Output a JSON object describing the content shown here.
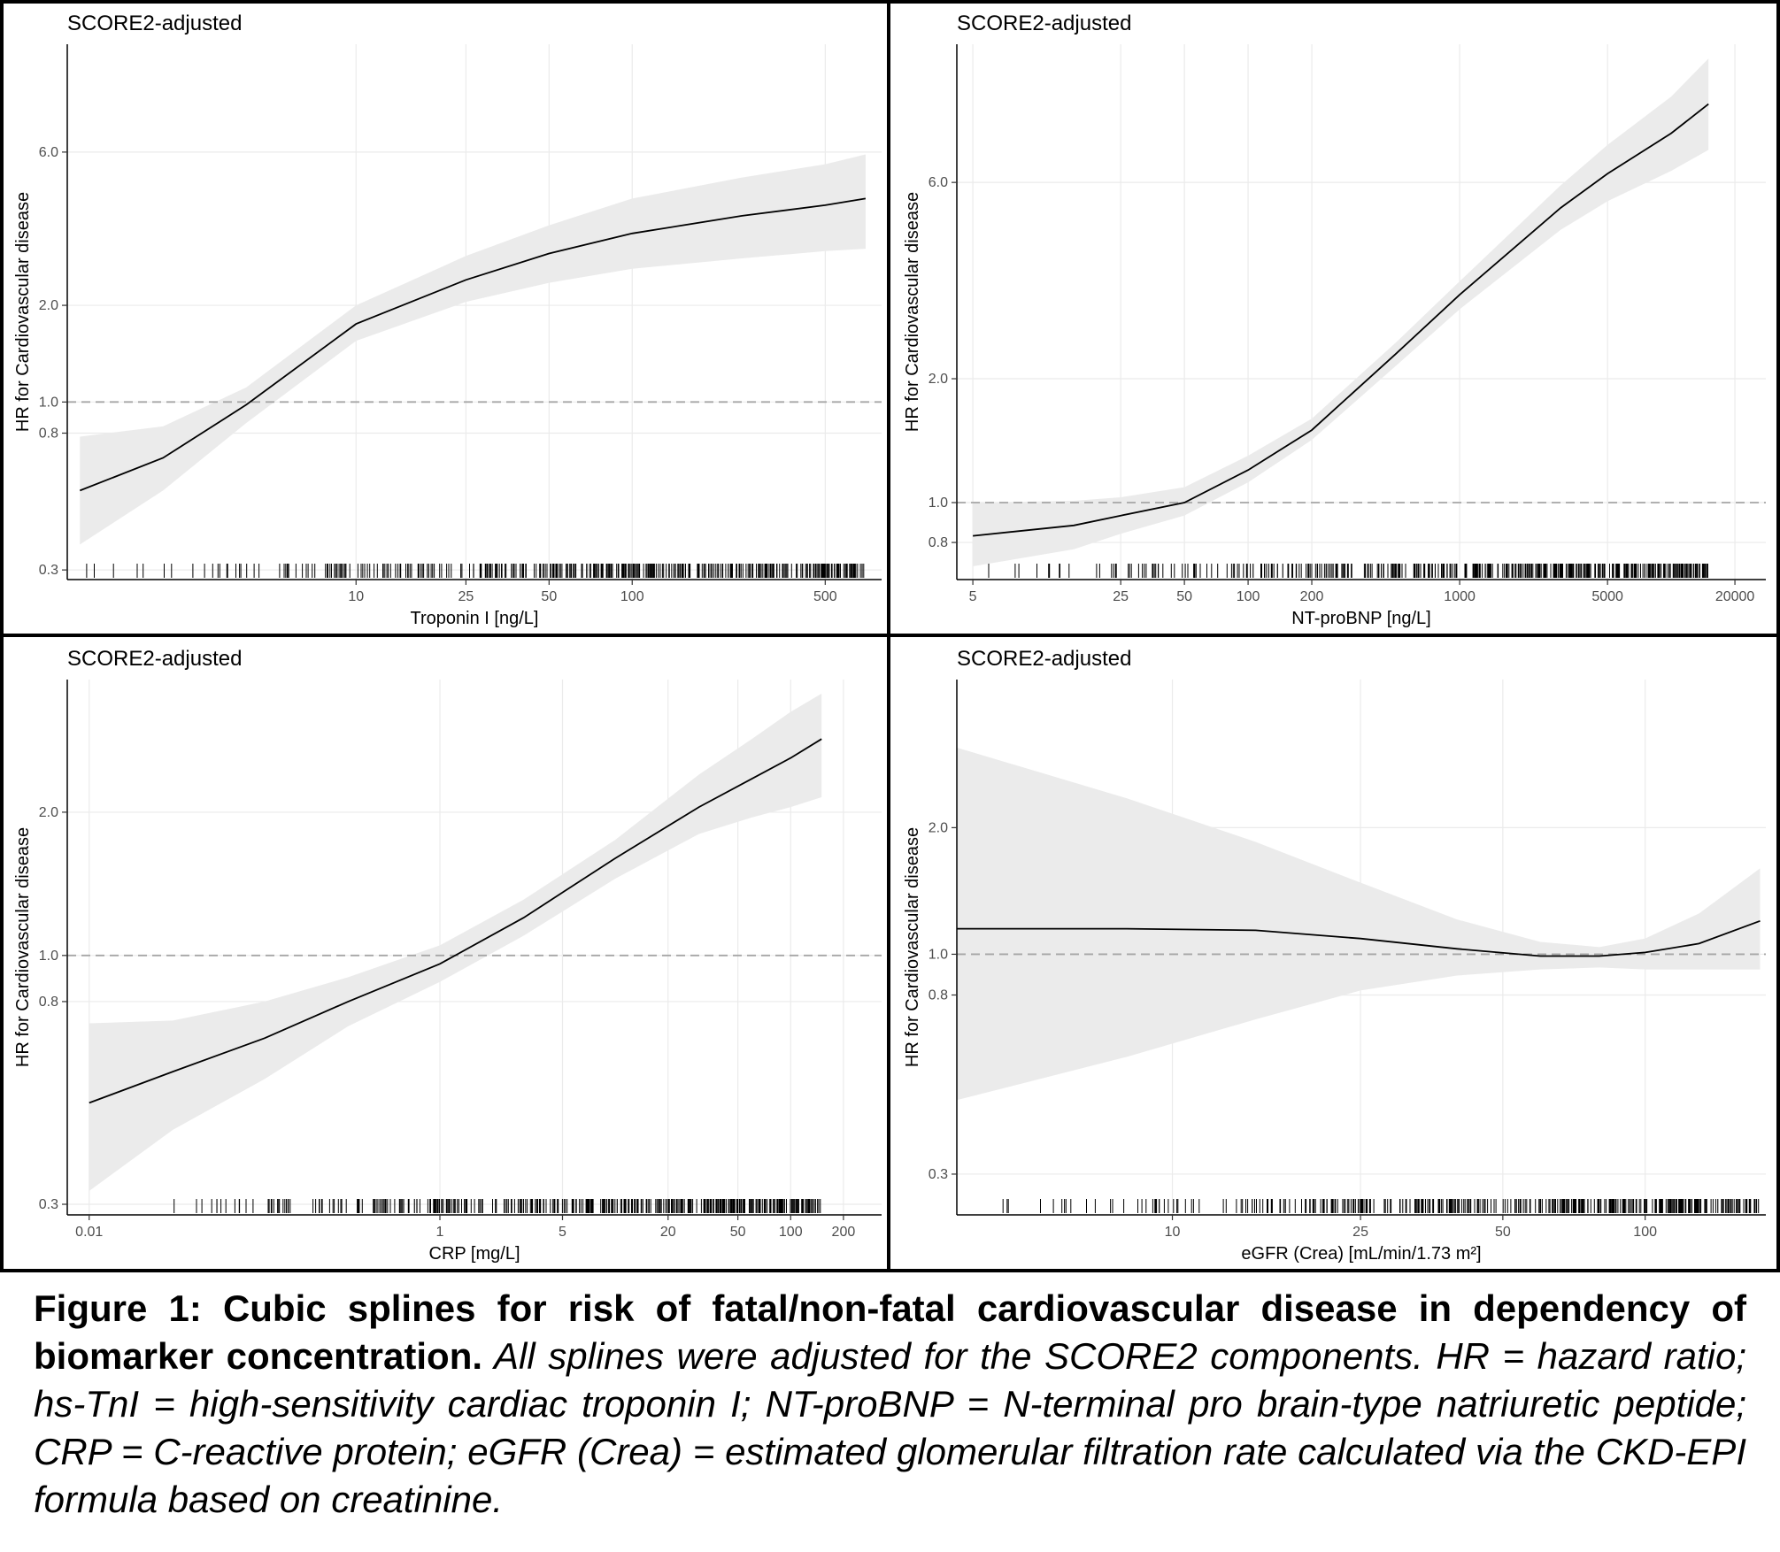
{
  "figure": {
    "caption_bold": "Figure 1: Cubic splines for risk of fatal/non-fatal cardiovascular disease in dependency of biomarker concentration.",
    "caption_italic": " All splines were adjusted for the SCORE2 components. HR = hazard ratio; hs-TnI = high-sensitivity cardiac troponin I; NT-proBNP = N-terminal pro brain-type natriuretic peptide; CRP = C-reactive protein; eGFR (Crea) = estimated glomerular filtration rate calculated via the CKD-EPI formula based on creatinine."
  },
  "colors": {
    "band": "#ebebeb",
    "grid": "#ebebeb",
    "line": "#000000",
    "ref": "#a6a6a6",
    "border": "#000000"
  },
  "chart_data": [
    {
      "type": "line",
      "title": "SCORE2-adjusted",
      "xlabel": "Troponin I [ng/L]",
      "ylabel": "HR for Cardiovascular disease",
      "x_scale": "log",
      "y_scale": "log",
      "xlim": [
        0.9,
        800
      ],
      "ylim": [
        0.28,
        13
      ],
      "xticks": [
        10,
        25,
        50,
        100,
        500
      ],
      "yticks": [
        0.3,
        0.8,
        1.0,
        2.0,
        6.0
      ],
      "reference_line": 1.0,
      "grid": true,
      "x": [
        1,
        2,
        4,
        10,
        25,
        50,
        100,
        250,
        500,
        700
      ],
      "y": [
        0.53,
        0.67,
        0.98,
        1.75,
        2.4,
        2.9,
        3.35,
        3.8,
        4.1,
        4.3
      ],
      "ci_lower": [
        0.36,
        0.53,
        0.86,
        1.55,
        2.05,
        2.35,
        2.6,
        2.8,
        2.95,
        3.0
      ],
      "ci_upper": [
        0.78,
        0.84,
        1.11,
        2.0,
        2.85,
        3.55,
        4.3,
        5.0,
        5.5,
        5.9
      ]
    },
    {
      "type": "line",
      "title": "SCORE2-adjusted",
      "xlabel": "NT-proBNP [ng/L]",
      "ylabel": "HR for Cardiovascular disease",
      "x_scale": "log",
      "y_scale": "log",
      "xlim": [
        4.2,
        28000
      ],
      "ylim": [
        0.65,
        13
      ],
      "xticks": [
        5,
        25,
        50,
        100,
        200,
        1000,
        5000,
        20000
      ],
      "yticks": [
        0.8,
        1.0,
        2.0,
        6.0
      ],
      "reference_line": 1.0,
      "grid": true,
      "x": [
        5,
        15,
        25,
        50,
        100,
        200,
        500,
        1000,
        3000,
        5000,
        10000,
        15000
      ],
      "y": [
        0.83,
        0.88,
        0.93,
        1.0,
        1.2,
        1.5,
        2.3,
        3.2,
        5.2,
        6.3,
        7.9,
        9.3
      ],
      "ci_lower": [
        0.7,
        0.77,
        0.84,
        0.93,
        1.12,
        1.42,
        2.15,
        2.95,
        4.6,
        5.4,
        6.4,
        7.2
      ],
      "ci_upper": [
        1.0,
        1.01,
        1.03,
        1.09,
        1.3,
        1.6,
        2.45,
        3.45,
        5.9,
        7.4,
        9.7,
        12.0
      ]
    },
    {
      "type": "line",
      "title": "SCORE2-adjusted",
      "xlabel": "CRP [mg/L]",
      "ylabel": "HR for Cardiovascular disease",
      "x_scale": "log",
      "y_scale": "log",
      "xlim": [
        0.0075,
        330
      ],
      "ylim": [
        0.285,
        3.8
      ],
      "xticks": [
        0.01,
        1,
        5,
        20,
        50,
        100,
        200
      ],
      "yticks": [
        0.3,
        0.8,
        1.0,
        2.0
      ],
      "reference_line": 1.0,
      "grid": true,
      "x": [
        0.01,
        0.03,
        0.1,
        0.3,
        1,
        3,
        10,
        30,
        60,
        100,
        150
      ],
      "y": [
        0.49,
        0.57,
        0.67,
        0.8,
        0.96,
        1.2,
        1.6,
        2.05,
        2.35,
        2.6,
        2.85
      ],
      "ci_lower": [
        0.32,
        0.43,
        0.55,
        0.71,
        0.88,
        1.1,
        1.45,
        1.8,
        1.95,
        2.05,
        2.15
      ],
      "ci_upper": [
        0.72,
        0.73,
        0.8,
        0.9,
        1.05,
        1.31,
        1.75,
        2.4,
        2.85,
        3.25,
        3.55
      ]
    },
    {
      "type": "line",
      "title": "SCORE2-adjusted",
      "xlabel": "eGFR (Crea) [mL/min/1.73 m²]",
      "ylabel": "HR for Cardiovascular disease",
      "x_scale": "log",
      "y_scale": "log",
      "xlim": [
        3.5,
        180
      ],
      "ylim": [
        0.24,
        4.5
      ],
      "xticks": [
        10,
        25,
        50,
        100
      ],
      "yticks": [
        0.3,
        0.8,
        1.0,
        2.0
      ],
      "reference_line": 1.0,
      "grid": true,
      "x": [
        3.5,
        8,
        15,
        25,
        40,
        60,
        80,
        100,
        130,
        175
      ],
      "y": [
        1.15,
        1.15,
        1.14,
        1.09,
        1.03,
        0.99,
        0.99,
        1.01,
        1.06,
        1.2
      ],
      "ci_lower": [
        0.45,
        0.57,
        0.7,
        0.82,
        0.89,
        0.92,
        0.93,
        0.92,
        0.92,
        0.92
      ],
      "ci_upper": [
        3.1,
        2.35,
        1.85,
        1.48,
        1.21,
        1.07,
        1.04,
        1.09,
        1.25,
        1.6
      ]
    }
  ]
}
